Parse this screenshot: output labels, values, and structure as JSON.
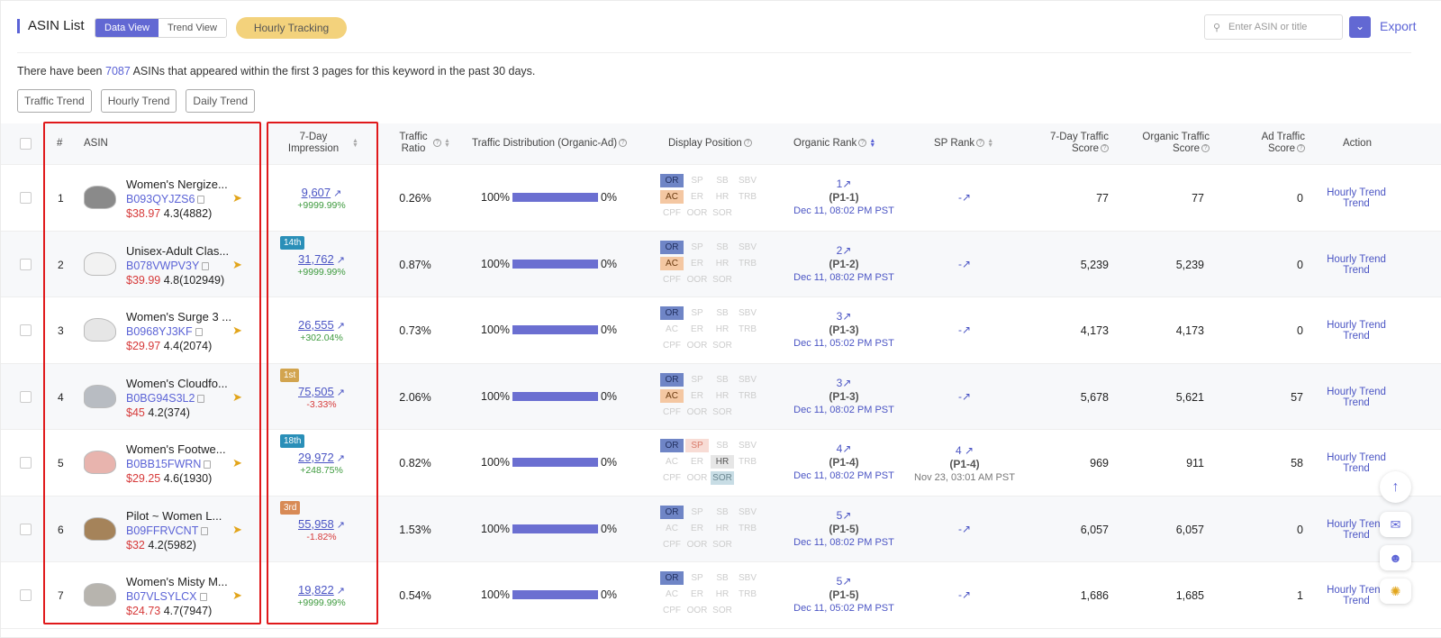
{
  "header": {
    "title": "ASIN List",
    "tabs": [
      "Data View",
      "Trend View"
    ],
    "hourly": "Hourly Tracking",
    "search_placeholder": "Enter ASIN or title",
    "export": "Export"
  },
  "info": {
    "pre": "There have been ",
    "count": "7087",
    "post": " ASINs that appeared within the first 3 pages for this keyword in the past 30 days."
  },
  "chips": [
    "Traffic Trend",
    "Hourly Trend",
    "Daily Trend"
  ],
  "columns": {
    "num": "#",
    "asin": "ASIN",
    "impression": "7-Day Impression",
    "ratio": "Traffic Ratio",
    "dist": "Traffic Distribution (Organic-Ad)",
    "display": "Display Position",
    "organic_rank": "Organic Rank",
    "sp_rank": "SP Rank",
    "traffic_score": "7-Day Traffic Score",
    "organic_score": "Organic Traffic Score",
    "ad_score": "Ad Traffic Score",
    "action": "Action"
  },
  "position_tags": [
    "OR",
    "SP",
    "SB",
    "SBV",
    "AC",
    "ER",
    "HR",
    "TRB",
    "CPF",
    "OOR",
    "SOR"
  ],
  "rows": [
    {
      "n": "1",
      "name": "Women's Nergize...",
      "asin": "B093QYJZS6",
      "price": "$38.97",
      "rating": "4.3(4882)",
      "badge": "",
      "imp": "9,607",
      "chg": "+9999.99%",
      "ratio": "0.26%",
      "org": "100%",
      "ad": "0%",
      "rank": "1",
      "page": "(P1-1)",
      "date": "Dec 11, 08:02 PM PST",
      "sp": "-",
      "sp_page": "",
      "sp_date": "",
      "t7": "77",
      "to": "77",
      "ta": "0",
      "act1": "Hourly Trend",
      "act2": "Trend"
    },
    {
      "n": "2",
      "name": "Unisex-Adult Clas...",
      "asin": "B078VWPV3Y",
      "price": "$39.99",
      "rating": "4.8(102949)",
      "badge": "14th",
      "imp": "31,762",
      "chg": "+9999.99%",
      "ratio": "0.87%",
      "org": "100%",
      "ad": "0%",
      "rank": "2",
      "page": "(P1-2)",
      "date": "Dec 11, 08:02 PM PST",
      "sp": "-",
      "sp_page": "",
      "sp_date": "",
      "t7": "5,239",
      "to": "5,239",
      "ta": "0",
      "act1": "Hourly Trend",
      "act2": "Trend"
    },
    {
      "n": "3",
      "name": "Women's Surge 3 ...",
      "asin": "B0968YJ3KF",
      "price": "$29.97",
      "rating": "4.4(2074)",
      "badge": "",
      "imp": "26,555",
      "chg": "+302.04%",
      "ratio": "0.73%",
      "org": "100%",
      "ad": "0%",
      "rank": "3",
      "page": "(P1-3)",
      "date": "Dec 11, 05:02 PM PST",
      "sp": "-",
      "sp_page": "",
      "sp_date": "",
      "t7": "4,173",
      "to": "4,173",
      "ta": "0",
      "act1": "Hourly Trend",
      "act2": "Trend"
    },
    {
      "n": "4",
      "name": "Women's Cloudfo...",
      "asin": "B0BG94S3L2",
      "price": "$45",
      "rating": "4.2(374)",
      "badge": "1st",
      "imp": "75,505",
      "chg": "-3.33%",
      "ratio": "2.06%",
      "org": "100%",
      "ad": "0%",
      "rank": "3",
      "page": "(P1-3)",
      "date": "Dec 11, 08:02 PM PST",
      "sp": "-",
      "sp_page": "",
      "sp_date": "",
      "t7": "5,678",
      "to": "5,621",
      "ta": "57",
      "act1": "Hourly Trend",
      "act2": "Trend"
    },
    {
      "n": "5",
      "name": "Women's Footwe...",
      "asin": "B0BB15FWRN",
      "price": "$29.25",
      "rating": "4.6(1930)",
      "badge": "18th",
      "imp": "29,972",
      "chg": "+248.75%",
      "ratio": "0.82%",
      "org": "100%",
      "ad": "0%",
      "rank": "4",
      "page": "(P1-4)",
      "date": "Dec 11, 08:02 PM PST",
      "sp": "4",
      "sp_page": "(P1-4)",
      "sp_date": "Nov 23, 03:01 AM PST",
      "t7": "969",
      "to": "911",
      "ta": "58",
      "act1": "Hourly Trend",
      "act2": "Trend"
    },
    {
      "n": "6",
      "name": "Pilot ~ Women L...",
      "asin": "B09FFRVCNT",
      "price": "$32",
      "rating": "4.2(5982)",
      "badge": "3rd",
      "imp": "55,958",
      "chg": "-1.82%",
      "ratio": "1.53%",
      "org": "100%",
      "ad": "0%",
      "rank": "5",
      "page": "(P1-5)",
      "date": "Dec 11, 08:02 PM PST",
      "sp": "-",
      "sp_page": "",
      "sp_date": "",
      "t7": "6,057",
      "to": "6,057",
      "ta": "0",
      "act1": "Hourly Trend",
      "act2": "Trend"
    },
    {
      "n": "7",
      "name": "Women's Misty M...",
      "asin": "B07VLSYLCX",
      "price": "$24.73",
      "rating": "4.7(7947)",
      "badge": "",
      "imp": "19,822",
      "chg": "+9999.99%",
      "ratio": "0.54%",
      "org": "100%",
      "ad": "0%",
      "rank": "5",
      "page": "(P1-5)",
      "date": "Dec 11, 05:02 PM PST",
      "sp": "-",
      "sp_page": "",
      "sp_date": "",
      "t7": "1,686",
      "to": "1,685",
      "ta": "1",
      "act1": "Hourly Trend",
      "act2": "Trend"
    }
  ],
  "colors": {
    "accent": "#5b63d6",
    "up": "#3e9a3e",
    "down": "#d63a3a",
    "highlight": "#e0191b"
  }
}
